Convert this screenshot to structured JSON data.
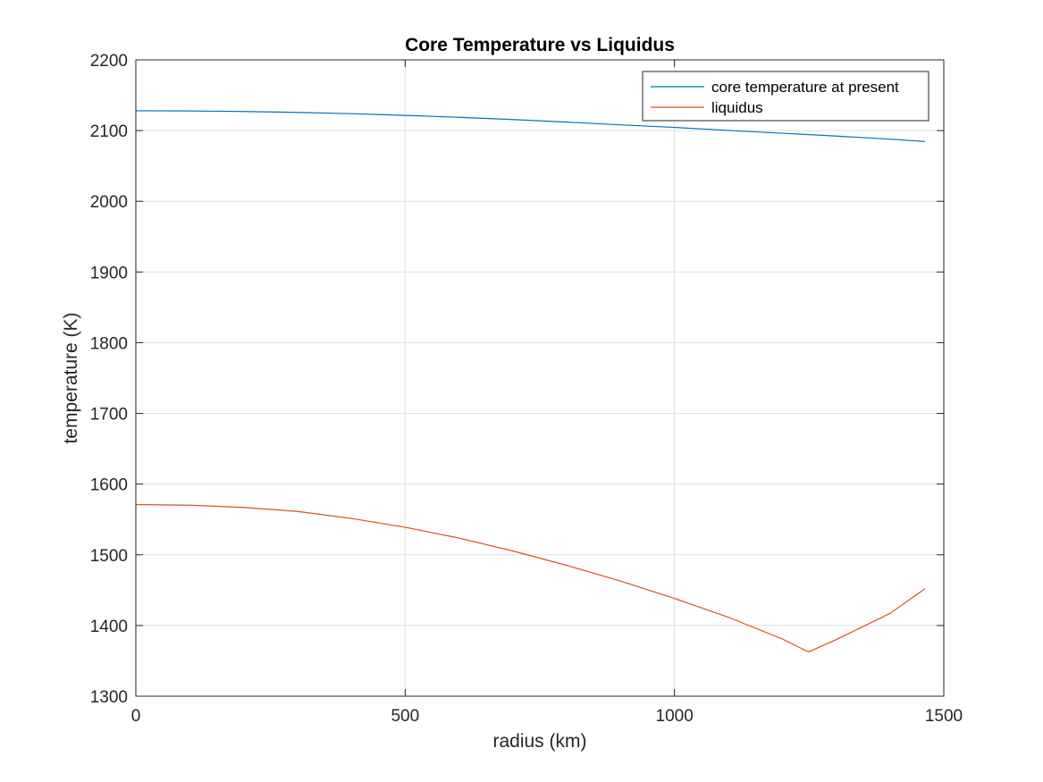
{
  "chart_data": {
    "type": "line",
    "title": "Core Temperature vs Liquidus",
    "xlabel": "radius (km)",
    "ylabel": "temperature (K)",
    "xlim": [
      0,
      1500
    ],
    "ylim": [
      1300,
      2200
    ],
    "xticks": [
      0,
      500,
      1000,
      1500
    ],
    "yticks": [
      1300,
      1400,
      1500,
      1600,
      1700,
      1800,
      1900,
      2000,
      2100,
      2200
    ],
    "grid": true,
    "legend_position": "top-right",
    "series": [
      {
        "name": "core temperature at present",
        "color": "#0072bd",
        "x": [
          0,
          100,
          200,
          300,
          400,
          500,
          600,
          700,
          800,
          900,
          1000,
          1100,
          1200,
          1300,
          1400,
          1465
        ],
        "y": [
          2128,
          2127.8,
          2127,
          2125.7,
          2123.9,
          2121.5,
          2118.8,
          2115.6,
          2112,
          2108.1,
          2104.5,
          2100.2,
          2096.3,
          2092.2,
          2087.9,
          2084.5
        ]
      },
      {
        "name": "liquidus",
        "color": "#d95319",
        "x": [
          0,
          100,
          200,
          300,
          400,
          500,
          600,
          700,
          800,
          900,
          1000,
          1100,
          1200,
          1245,
          1250,
          1300,
          1400,
          1465
        ],
        "y": [
          1571,
          1570.2,
          1567,
          1561.3,
          1551.5,
          1539,
          1523.7,
          1505.4,
          1485,
          1462.8,
          1438.4,
          1411.7,
          1381,
          1364,
          1363,
          1380,
          1417,
          1452
        ]
      }
    ]
  }
}
